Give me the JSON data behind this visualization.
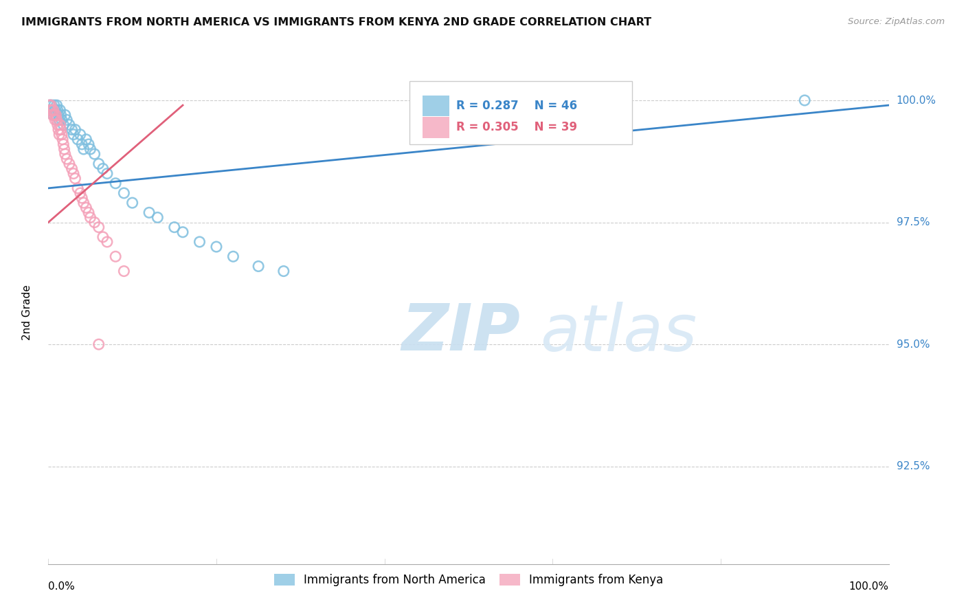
{
  "title": "IMMIGRANTS FROM NORTH AMERICA VS IMMIGRANTS FROM KENYA 2ND GRADE CORRELATION CHART",
  "source": "Source: ZipAtlas.com",
  "ylabel": "2nd Grade",
  "ytick_labels": [
    "100.0%",
    "97.5%",
    "95.0%",
    "92.5%"
  ],
  "ytick_values": [
    1.0,
    0.975,
    0.95,
    0.925
  ],
  "ylim": [
    0.905,
    1.008
  ],
  "xlim": [
    0.0,
    1.0
  ],
  "blue_R": "R = 0.287",
  "blue_N": "N = 46",
  "pink_R": "R = 0.305",
  "pink_N": "N = 39",
  "blue_color": "#7fbfdf",
  "pink_color": "#f4a0b8",
  "blue_line_color": "#3a85c8",
  "pink_line_color": "#e0607a",
  "watermark_zip": "ZIP",
  "watermark_atlas": "atlas",
  "blue_scatter_x": [
    0.002,
    0.003,
    0.004,
    0.005,
    0.006,
    0.007,
    0.008,
    0.009,
    0.01,
    0.011,
    0.012,
    0.013,
    0.014,
    0.015,
    0.016,
    0.018,
    0.02,
    0.022,
    0.025,
    0.028,
    0.03,
    0.032,
    0.035,
    0.038,
    0.04,
    0.042,
    0.045,
    0.048,
    0.05,
    0.055,
    0.06,
    0.065,
    0.07,
    0.08,
    0.09,
    0.1,
    0.12,
    0.13,
    0.15,
    0.16,
    0.18,
    0.2,
    0.22,
    0.25,
    0.28,
    0.9
  ],
  "blue_scatter_y": [
    0.999,
    0.998,
    0.999,
    0.998,
    0.997,
    0.999,
    0.998,
    0.997,
    0.999,
    0.998,
    0.997,
    0.996,
    0.998,
    0.997,
    0.996,
    0.995,
    0.997,
    0.996,
    0.995,
    0.994,
    0.993,
    0.994,
    0.992,
    0.993,
    0.991,
    0.99,
    0.992,
    0.991,
    0.99,
    0.989,
    0.987,
    0.986,
    0.985,
    0.983,
    0.981,
    0.979,
    0.977,
    0.976,
    0.974,
    0.973,
    0.971,
    0.97,
    0.968,
    0.966,
    0.965,
    1.0
  ],
  "pink_scatter_x": [
    0.001,
    0.002,
    0.003,
    0.004,
    0.005,
    0.006,
    0.007,
    0.008,
    0.009,
    0.01,
    0.011,
    0.012,
    0.013,
    0.014,
    0.015,
    0.016,
    0.017,
    0.018,
    0.019,
    0.02,
    0.022,
    0.025,
    0.028,
    0.03,
    0.032,
    0.035,
    0.038,
    0.04,
    0.042,
    0.045,
    0.048,
    0.05,
    0.055,
    0.06,
    0.065,
    0.07,
    0.08,
    0.09,
    0.06
  ],
  "pink_scatter_y": [
    0.999,
    0.998,
    0.999,
    0.998,
    0.997,
    0.998,
    0.997,
    0.996,
    0.997,
    0.996,
    0.995,
    0.994,
    0.993,
    0.995,
    0.994,
    0.993,
    0.992,
    0.991,
    0.99,
    0.989,
    0.988,
    0.987,
    0.986,
    0.985,
    0.984,
    0.982,
    0.981,
    0.98,
    0.979,
    0.978,
    0.977,
    0.976,
    0.975,
    0.974,
    0.972,
    0.971,
    0.968,
    0.965,
    0.95
  ],
  "blue_line_x": [
    0.0,
    1.0
  ],
  "blue_line_y": [
    0.982,
    0.999
  ],
  "pink_line_x": [
    0.0,
    0.16
  ],
  "pink_line_y": [
    0.975,
    0.999
  ]
}
